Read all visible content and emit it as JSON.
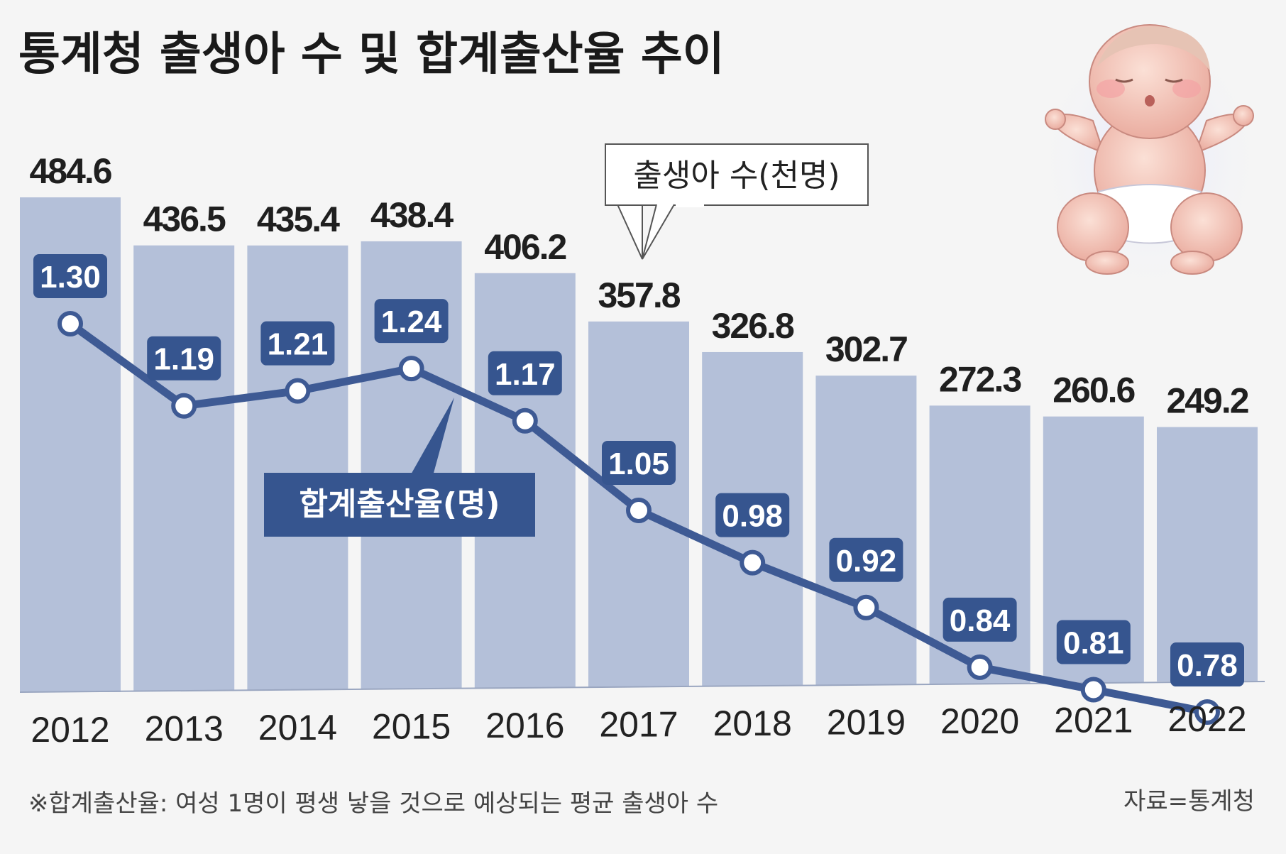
{
  "title": "통계청 출생아 수 및 합계출산율 추이",
  "footnote": "※합계출산율: 여성 1명이 평생 낳을 것으로 예상되는 평균 출생아 수",
  "source": "자료=통계청",
  "colors": {
    "bar": "#b4c0d9",
    "line": "#3e5a94",
    "label_box": "#36558f",
    "background": "#f5f5f5"
  },
  "chart_data": {
    "type": "bar",
    "categories": [
      "2012",
      "2013",
      "2014",
      "2015",
      "2016",
      "2017",
      "2018",
      "2019",
      "2020",
      "2021",
      "2022"
    ],
    "series": [
      {
        "name": "출생아 수(천명)",
        "type": "bar",
        "values": [
          484.6,
          436.5,
          435.4,
          438.4,
          406.2,
          357.8,
          326.8,
          302.7,
          272.3,
          260.6,
          249.2
        ],
        "labels": [
          "484.6",
          "436.5",
          "435.4",
          "438.4",
          "406.2",
          "357.8",
          "326.8",
          "302.7",
          "272.3",
          "260.6",
          "249.2"
        ]
      },
      {
        "name": "합계출산율(명)",
        "type": "line",
        "values": [
          1.3,
          1.19,
          1.21,
          1.24,
          1.17,
          1.05,
          0.98,
          0.92,
          0.84,
          0.81,
          0.78
        ],
        "labels": [
          "1.30",
          "1.19",
          "1.21",
          "1.24",
          "1.17",
          "1.05",
          "0.98",
          "0.92",
          "0.84",
          "0.81",
          "0.78"
        ]
      }
    ],
    "legend": {
      "bar_label": "출생아 수(천명)",
      "line_label": "합계출산율(명)"
    },
    "title": "통계청 출생아 수 및 합계출산율 추이"
  }
}
